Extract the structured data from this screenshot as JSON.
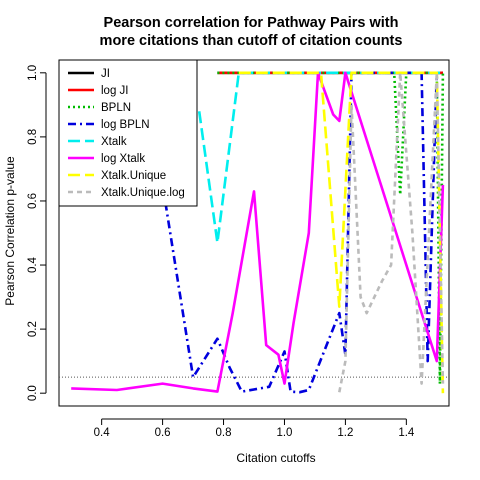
{
  "chart_data": {
    "type": "line",
    "title": [
      "Pearson correlation for Pathway Pairs with",
      "more citations than cutoff of citation counts"
    ],
    "xlabel": "Citation cutoffs",
    "ylabel": "Pearson Correlation p-value",
    "xlim": [
      0.26,
      1.54
    ],
    "ylim": [
      -0.04,
      1.04
    ],
    "xticks": [
      0.4,
      0.6,
      0.8,
      1.0,
      1.2,
      1.4
    ],
    "xtick_labels": [
      "0.4",
      "0.6",
      "0.8",
      "1.0",
      "1.2",
      "1.4"
    ],
    "yticks": [
      0.0,
      0.2,
      0.4,
      0.6,
      0.8,
      1.0
    ],
    "ytick_labels": [
      "0.0",
      "0.2",
      "0.4",
      "0.6",
      "0.8",
      "1.0"
    ],
    "reference_line": {
      "y": 0.05,
      "style": "dotted",
      "color": "#555555"
    },
    "legend_position": "top-left",
    "series": [
      {
        "name": "JI",
        "color": "#000000",
        "dash": "solid",
        "x": [
          0.78,
          1.52
        ],
        "y": [
          1.0,
          1.0
        ]
      },
      {
        "name": "log JI",
        "color": "#ff0000",
        "dash": "solid",
        "x": [
          0.78,
          1.52
        ],
        "y": [
          1.0,
          1.0
        ]
      },
      {
        "name": "BPLN",
        "color": "#00bb00",
        "dash": "dotted",
        "x": [
          0.78,
          1.36,
          1.38,
          1.4,
          1.5,
          1.51,
          1.52
        ],
        "y": [
          1.0,
          1.0,
          0.62,
          1.0,
          1.0,
          0.03,
          1.0
        ]
      },
      {
        "name": "log BPLN",
        "color": "#0000dd",
        "dash": "dashdot",
        "x": [
          0.6,
          0.7,
          0.78,
          0.82,
          0.86,
          0.95,
          1.0,
          1.02,
          1.05,
          1.08,
          1.18,
          1.2,
          1.22,
          1.28,
          1.45,
          1.47,
          1.5
        ],
        "y": [
          0.65,
          0.05,
          0.17,
          0.08,
          0.005,
          0.02,
          0.13,
          0.005,
          0.003,
          0.01,
          0.25,
          0.12,
          1.0,
          1.0,
          1.0,
          0.1,
          1.0
        ]
      },
      {
        "name": "Xtalk",
        "color": "#00eeee",
        "dash": "longdash",
        "x": [
          0.72,
          0.78,
          0.85,
          1.52
        ],
        "y": [
          0.88,
          0.47,
          1.0,
          1.0
        ]
      },
      {
        "name": "log Xtalk",
        "color": "#ff00ff",
        "dash": "solid",
        "x": [
          0.3,
          0.45,
          0.6,
          0.7,
          0.78,
          0.83,
          0.9,
          0.94,
          0.98,
          1.0,
          1.03,
          1.08,
          1.11,
          1.16,
          1.18,
          1.2,
          1.5,
          1.52
        ],
        "y": [
          0.015,
          0.01,
          0.03,
          0.015,
          0.005,
          0.25,
          0.63,
          0.15,
          0.12,
          0.03,
          0.22,
          0.5,
          1.0,
          0.87,
          0.85,
          1.0,
          0.1,
          0.65
        ]
      },
      {
        "name": "Xtalk.Unique",
        "color": "#ffff00",
        "dash": "longdash",
        "x": [
          0.85,
          1.12,
          1.18,
          1.22,
          1.25,
          1.5,
          1.52
        ],
        "y": [
          1.0,
          1.0,
          0.27,
          1.0,
          1.0,
          1.0,
          0.0
        ]
      },
      {
        "name": "Xtalk.Unique.log",
        "color": "#bbbbbb",
        "dash": "dashed",
        "x": [
          1.18,
          1.2,
          1.22,
          1.25,
          1.27,
          1.32,
          1.35,
          1.38,
          1.42,
          1.45,
          1.5,
          1.52
        ],
        "y": [
          0.003,
          0.1,
          0.9,
          0.3,
          0.25,
          0.35,
          0.4,
          1.0,
          0.5,
          0.03,
          1.0,
          0.03
        ]
      }
    ]
  }
}
